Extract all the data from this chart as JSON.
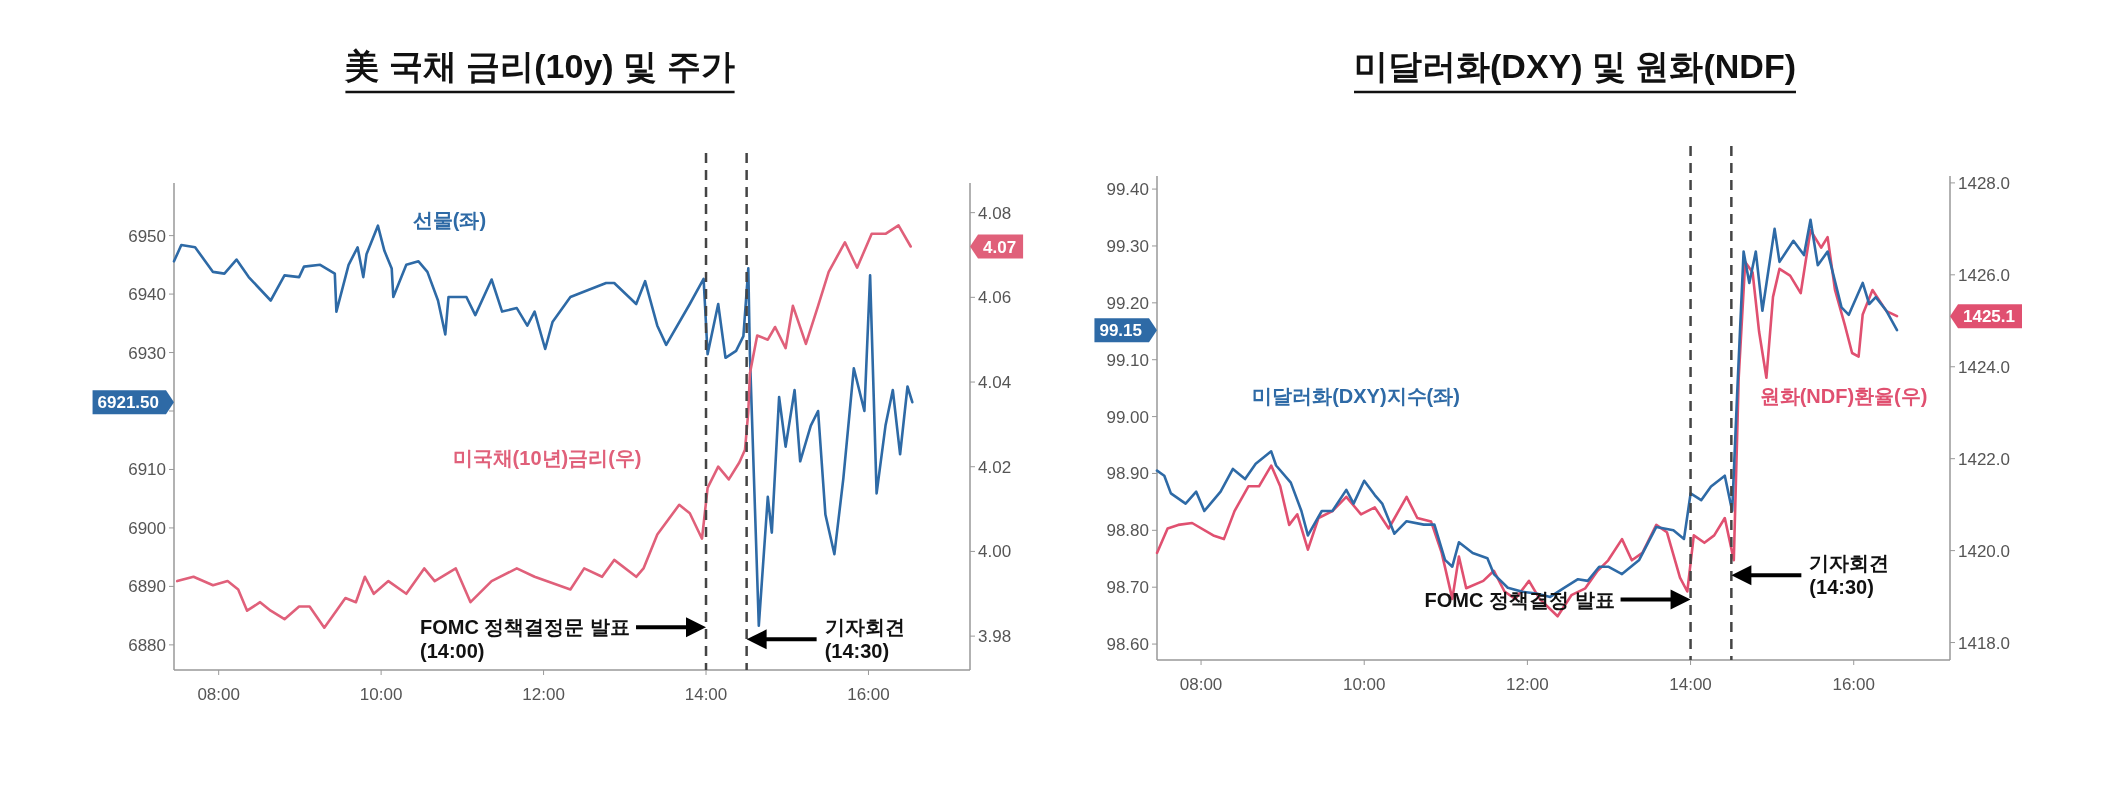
{
  "chart_data": [
    {
      "type": "line",
      "title": "美 국채 금리(10y) 및 주가",
      "xlim": [
        7.45,
        17.25
      ],
      "xticks": [
        {
          "value": 8,
          "label": "08:00"
        },
        {
          "value": 10,
          "label": "10:00"
        },
        {
          "value": 12,
          "label": "12:00"
        },
        {
          "value": 14,
          "label": "14:00"
        },
        {
          "value": 16,
          "label": "16:00"
        }
      ],
      "ylim": [
        6875.7,
        6959
      ],
      "yticks": [
        6880,
        6890,
        6900,
        6910,
        {
          "value": 6920,
          "label": null
        },
        6930,
        6940,
        6950
      ],
      "y2lim": [
        3.972,
        4.087
      ],
      "y2ticks": [
        3.98,
        {
          "value": 4.0,
          "label": "4.00"
        },
        4.02,
        4.04,
        4.06,
        4.08
      ],
      "series": [
        {
          "name": "선물(좌)",
          "color": "#2e6aa6",
          "x": [
            7.45,
            7.54,
            7.71,
            7.93,
            8.07,
            8.22,
            8.37,
            8.64,
            8.81,
            8.99,
            9.05,
            9.25,
            9.43,
            9.45,
            9.6,
            9.71,
            9.78,
            9.82,
            9.96,
            10.04,
            10.13,
            10.15,
            10.31,
            10.46,
            10.57,
            10.7,
            10.79,
            10.83,
            11.05,
            11.16,
            11.36,
            11.49,
            11.67,
            11.8,
            11.89,
            12.02,
            12.11,
            12.33,
            12.55,
            12.77,
            12.87,
            13.14,
            13.25,
            13.4,
            13.51,
            13.8,
            13.97,
            14.02,
            14.15,
            14.24,
            14.37,
            14.46,
            14.52,
            14.54,
            14.65,
            14.76,
            14.81,
            14.9,
            14.98,
            15.09,
            15.16,
            15.29,
            15.38,
            15.47,
            15.58,
            15.69,
            15.82,
            15.95,
            16.02,
            16.1,
            16.21,
            16.3,
            16.39,
            16.48,
            16.54
          ],
          "values": [
            6945.6,
            6948.4,
            6948,
            6943.8,
            6943.5,
            6945.9,
            6942.9,
            6938.9,
            6943.2,
            6942.9,
            6944.7,
            6945,
            6943.5,
            6937,
            6945,
            6948,
            6942.9,
            6946.8,
            6951.7,
            6947.4,
            6944.4,
            6939.5,
            6945,
            6945.6,
            6943.8,
            6938.9,
            6933.1,
            6939.5,
            6939.5,
            6936.4,
            6942.5,
            6937,
            6937.6,
            6934.6,
            6937,
            6930.6,
            6935.2,
            6939.5,
            6940.7,
            6941.9,
            6941.9,
            6938.3,
            6942.2,
            6934.6,
            6931.3,
            6938.3,
            6942.6,
            6929.7,
            6938.3,
            6929.1,
            6930.3,
            6932.8,
            6944.4,
            6929.7,
            6883.3,
            6905.3,
            6899.2,
            6922.4,
            6913.9,
            6923.6,
            6911.4,
            6917.5,
            6920,
            6902.3,
            6895.5,
            6908.4,
            6927.3,
            6920,
            6943.2,
            6905.9,
            6917.5,
            6923.6,
            6912.6,
            6924.2,
            6921.5
          ]
        },
        {
          "name": "미국채(10년)금리(우)",
          "color": "#e0607a",
          "axis": "y2",
          "x": [
            7.49,
            7.69,
            7.93,
            8.11,
            8.24,
            8.35,
            8.51,
            8.64,
            8.81,
            8.99,
            9.12,
            9.3,
            9.45,
            9.56,
            9.69,
            9.8,
            9.91,
            10.09,
            10.31,
            10.53,
            10.66,
            10.92,
            11.1,
            11.36,
            11.67,
            11.89,
            12.33,
            12.5,
            12.72,
            12.87,
            13.14,
            13.23,
            13.4,
            13.67,
            13.8,
            13.95,
            14.02,
            14.15,
            14.28,
            14.41,
            14.48,
            14.52,
            14.54,
            14.63,
            14.76,
            14.85,
            14.98,
            15.07,
            15.23,
            15.38,
            15.51,
            15.71,
            15.86,
            16.04,
            16.21,
            16.37,
            16.52
          ],
          "values": [
            3.993,
            3.994,
            3.992,
            3.993,
            3.991,
            3.986,
            3.988,
            3.986,
            3.984,
            3.987,
            3.987,
            3.982,
            3.986,
            3.989,
            3.988,
            3.994,
            3.99,
            3.993,
            3.99,
            3.996,
            3.993,
            3.996,
            3.988,
            3.993,
            3.996,
            3.994,
            3.991,
            3.996,
            3.994,
            3.998,
            3.994,
            3.996,
            4.004,
            4.011,
            4.009,
            4.003,
            4.015,
            4.02,
            4.017,
            4.021,
            4.024,
            4.033,
            4.042,
            4.051,
            4.05,
            4.053,
            4.048,
            4.058,
            4.049,
            4.058,
            4.066,
            4.073,
            4.067,
            4.075,
            4.075,
            4.077,
            4.072
          ]
        }
      ],
      "ref_lines": [
        {
          "axis": "x",
          "value": 14,
          "color": "#444444",
          "line_style": "dashed"
        },
        {
          "axis": "x",
          "value": 14.5,
          "color": "#444444",
          "line_style": "dashed"
        }
      ],
      "annotations": [
        "FOMC 정책결정문 발표\n(14:00)",
        "기자회견\n(14:30)",
        "6921.50",
        "4.07"
      ]
    },
    {
      "type": "line",
      "title": "미달러화(DXY) 및 원화(NDF)",
      "xlim": [
        7.46,
        17.18
      ],
      "xticks": [
        {
          "value": 8,
          "label": "08:00"
        },
        {
          "value": 10,
          "label": "10:00"
        },
        {
          "value": 12,
          "label": "12:00"
        },
        {
          "value": 14,
          "label": "14:00"
        },
        {
          "value": 16,
          "label": "16:00"
        }
      ],
      "ylim": [
        98.572,
        99.423
      ],
      "yticks": [
        {
          "value": 98.6,
          "label": "98.60"
        },
        {
          "value": 98.7,
          "label": "98.70"
        },
        {
          "value": 98.8,
          "label": "98.80"
        },
        {
          "value": 98.9,
          "label": "98.90"
        },
        {
          "value": 99.0,
          "label": "99.00"
        },
        {
          "value": 99.1,
          "label": "99.10"
        },
        {
          "value": 99.2,
          "label": "99.20"
        },
        {
          "value": 99.3,
          "label": "99.30"
        },
        {
          "value": 99.4,
          "label": "99.40"
        }
      ],
      "y2lim": [
        1417.62,
        1428.15
      ],
      "y2ticks": [
        {
          "value": 1418,
          "label": "1418.0"
        },
        {
          "value": 1420,
          "label": "1420.0"
        },
        {
          "value": 1422,
          "label": "1422.0"
        },
        {
          "value": 1424,
          "label": "1424.0"
        },
        {
          "value": 1426,
          "label": "1426.0"
        },
        {
          "value": 1428,
          "label": "1428.0"
        }
      ],
      "series": [
        {
          "name": "원화(NDF)환율(우)",
          "color": "#e05070",
          "axis": "y2",
          "x": [
            7.46,
            7.59,
            7.72,
            7.89,
            8.15,
            8.28,
            8.41,
            8.58,
            8.71,
            8.86,
            8.97,
            9.08,
            9.18,
            9.31,
            9.44,
            9.61,
            9.78,
            9.96,
            10.13,
            10.3,
            10.52,
            10.65,
            10.82,
            10.95,
            11.08,
            11.16,
            11.25,
            11.46,
            11.59,
            11.72,
            11.85,
            12.02,
            12.15,
            12.37,
            12.54,
            12.71,
            12.86,
            12.99,
            13.16,
            13.28,
            13.41,
            13.58,
            13.71,
            13.87,
            13.96,
            14.04,
            14.17,
            14.29,
            14.42,
            14.53,
            14.59,
            14.67,
            14.76,
            14.84,
            14.93,
            15.01,
            15.09,
            15.22,
            15.35,
            15.47,
            15.6,
            15.68,
            15.77,
            15.89,
            15.98,
            16.06,
            16.11,
            16.23,
            16.4,
            16.53
          ],
          "values": [
            1419.95,
            1420.48,
            1420.56,
            1420.6,
            1420.33,
            1420.25,
            1420.86,
            1421.4,
            1421.4,
            1421.85,
            1421.4,
            1420.56,
            1420.79,
            1420.02,
            1420.71,
            1420.86,
            1421.17,
            1420.79,
            1420.94,
            1420.48,
            1421.17,
            1420.71,
            1420.63,
            1419.95,
            1418.95,
            1419.87,
            1419.18,
            1419.34,
            1419.56,
            1419.11,
            1418.95,
            1419.34,
            1418.95,
            1418.57,
            1419.03,
            1419.18,
            1419.56,
            1419.79,
            1420.25,
            1419.79,
            1419.95,
            1420.56,
            1420.4,
            1419.41,
            1419.11,
            1420.33,
            1420.17,
            1420.33,
            1420.71,
            1419.79,
            1423.76,
            1426.28,
            1426.05,
            1424.76,
            1423.76,
            1425.52,
            1426.13,
            1425.98,
            1425.6,
            1426.97,
            1426.59,
            1426.82,
            1425.67,
            1424.91,
            1424.3,
            1424.22,
            1425.14,
            1425.67,
            1425.21,
            1425.1
          ]
        },
        {
          "name": "미달러화(DXY)지수(좌)",
          "color": "#2e6aa6",
          "x": [
            7.46,
            7.55,
            7.63,
            7.81,
            7.94,
            8.04,
            8.24,
            8.39,
            8.54,
            8.67,
            8.86,
            8.92,
            9.1,
            9.23,
            9.31,
            9.48,
            9.61,
            9.78,
            9.87,
            10.0,
            10.13,
            10.22,
            10.37,
            10.52,
            10.73,
            10.86,
            10.99,
            11.08,
            11.16,
            11.33,
            11.51,
            11.59,
            11.76,
            11.94,
            12.11,
            12.28,
            12.45,
            12.62,
            12.74,
            12.88,
            12.99,
            13.16,
            13.37,
            13.58,
            13.79,
            13.92,
            14.0,
            14.13,
            14.25,
            14.42,
            14.51,
            14.57,
            14.65,
            14.72,
            14.8,
            14.88,
            15.03,
            15.09,
            15.26,
            15.39,
            15.47,
            15.56,
            15.68,
            15.85,
            15.94,
            16.11,
            16.19,
            16.27,
            16.4,
            16.53
          ],
          "values": [
            98.905,
            98.896,
            98.865,
            98.847,
            98.868,
            98.834,
            98.868,
            98.908,
            98.89,
            98.917,
            98.939,
            98.914,
            98.884,
            98.834,
            98.791,
            98.834,
            98.834,
            98.871,
            98.847,
            98.887,
            98.862,
            98.847,
            98.794,
            98.816,
            98.81,
            98.81,
            98.748,
            98.736,
            98.779,
            98.76,
            98.751,
            98.723,
            98.699,
            98.692,
            98.689,
            98.683,
            98.699,
            98.714,
            98.711,
            98.736,
            98.736,
            98.723,
            98.748,
            98.806,
            98.8,
            98.785,
            98.865,
            98.853,
            98.877,
            98.896,
            98.834,
            99.038,
            99.29,
            99.235,
            99.29,
            99.186,
            99.33,
            99.272,
            99.309,
            99.284,
            99.346,
            99.266,
            99.29,
            99.192,
            99.179,
            99.235,
            99.198,
            99.21,
            99.186,
            99.152
          ]
        }
      ],
      "ref_lines": [
        {
          "axis": "x",
          "value": 14,
          "color": "#444444",
          "line_style": "dashed"
        },
        {
          "axis": "x",
          "value": 14.5,
          "color": "#444444",
          "line_style": "dashed"
        }
      ],
      "annotations": [
        "FOMC 정책결정 발표",
        "기자회견\n(14:30)",
        "99.15",
        "1425.1"
      ]
    }
  ]
}
